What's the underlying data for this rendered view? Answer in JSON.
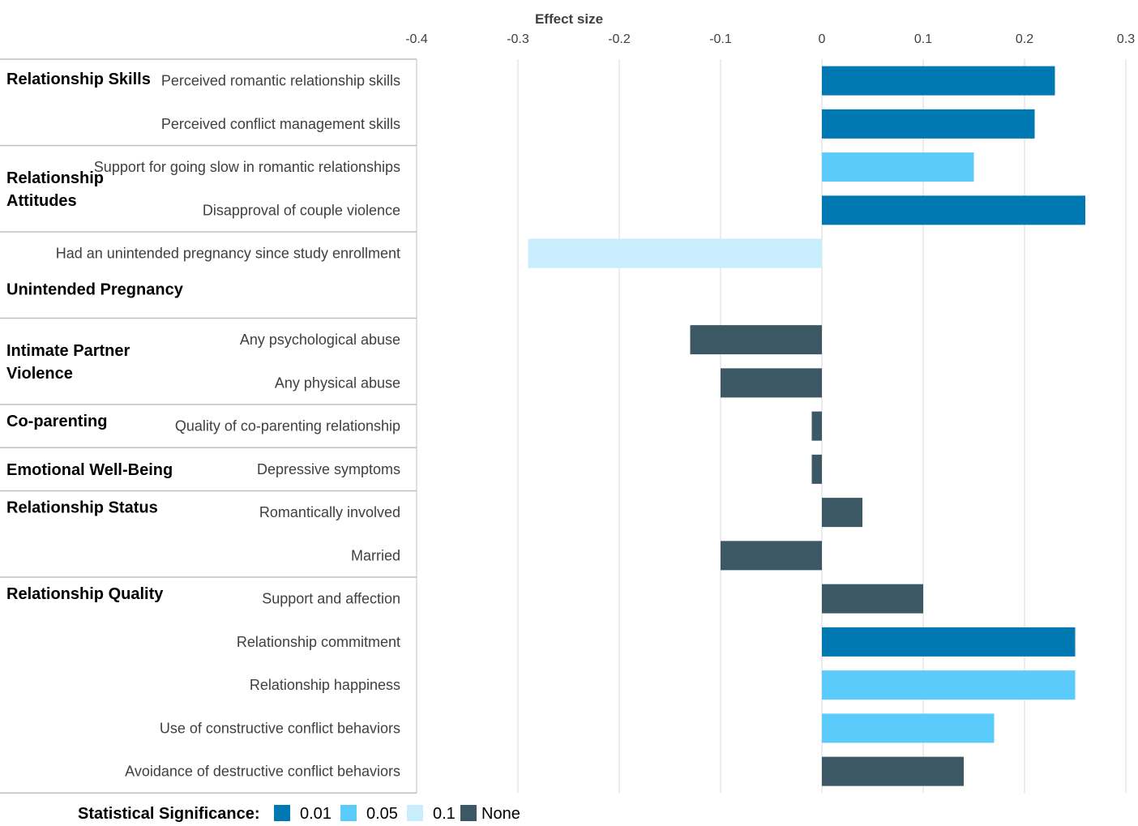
{
  "chart_data": {
    "type": "bar",
    "orientation": "horizontal",
    "axis_title": "Effect size",
    "xlim": [
      -0.4,
      0.3
    ],
    "x_ticks": [
      -0.4,
      -0.3,
      -0.2,
      -0.1,
      0,
      0.1,
      0.2,
      0.3
    ],
    "x_tick_labels": [
      "-0.4",
      "-0.3",
      "-0.2",
      "-0.1",
      "0",
      "0.1",
      "0.2",
      "0.3"
    ],
    "grid": true,
    "groups": [
      {
        "label": "Relationship Skills",
        "items": [
          {
            "label": "Perceived romantic relationship skills",
            "value": 0.23,
            "significance": "0.01"
          },
          {
            "label": "Perceived conflict management skills",
            "value": 0.21,
            "significance": "0.01"
          }
        ]
      },
      {
        "label": "Relationship Attitudes",
        "items": [
          {
            "label": "Support for going slow in romantic relationships",
            "value": 0.15,
            "significance": "0.05"
          },
          {
            "label": "Disapproval of couple violence",
            "value": 0.26,
            "significance": "0.01"
          }
        ]
      },
      {
        "label": "Unintended Pregnancy",
        "items": [
          {
            "label": "Had an unintended pregnancy since study enrollment",
            "value": -0.29,
            "significance": "0.1"
          },
          {
            "label": "",
            "value": null,
            "significance": null
          }
        ]
      },
      {
        "label": "Intimate Partner Violence",
        "items": [
          {
            "label": "Any psychological abuse",
            "value": -0.13,
            "significance": "None"
          },
          {
            "label": "Any physical abuse",
            "value": -0.1,
            "significance": "None"
          }
        ]
      },
      {
        "label": "Co-parenting",
        "items": [
          {
            "label": "Quality of co-parenting relationship",
            "value": -0.01,
            "significance": "None"
          }
        ]
      },
      {
        "label": "Emotional Well-Being",
        "items": [
          {
            "label": "Depressive symptoms",
            "value": -0.01,
            "significance": "None"
          }
        ]
      },
      {
        "label": "Relationship Status",
        "items": [
          {
            "label": "Romantically involved",
            "value": 0.04,
            "significance": "None"
          },
          {
            "label": "Married",
            "value": -0.1,
            "significance": "None"
          }
        ]
      },
      {
        "label": "Relationship Quality",
        "items": [
          {
            "label": "Support and affection",
            "value": 0.1,
            "significance": "None"
          },
          {
            "label": "Relationship commitment",
            "value": 0.25,
            "significance": "0.01"
          },
          {
            "label": "Relationship happiness",
            "value": 0.25,
            "significance": "0.05"
          },
          {
            "label": "Use of constructive conflict behaviors",
            "value": 0.17,
            "significance": "0.05"
          },
          {
            "label": "Avoidance of destructive conflict behaviors",
            "value": 0.14,
            "significance": "None"
          }
        ]
      }
    ],
    "legend": {
      "title": "Statistical Significance:",
      "placement": "bottom",
      "entries": [
        {
          "label": "0.01",
          "color": "#0079B2"
        },
        {
          "label": "0.05",
          "color": "#5BCBFC"
        },
        {
          "label": "0.1",
          "color": "#C8EDFD"
        },
        {
          "label": "None",
          "color": "#3D5865"
        }
      ]
    }
  }
}
